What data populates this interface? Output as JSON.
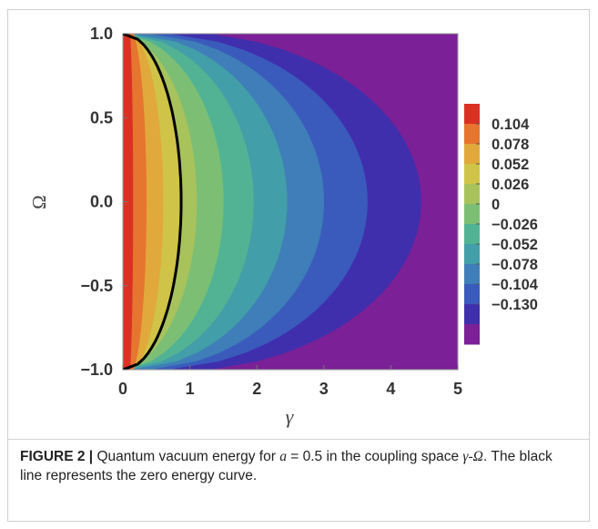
{
  "chart_data": {
    "type": "heatmap",
    "subtype": "contour",
    "title": "",
    "xlabel": "γ",
    "ylabel": "Ω",
    "xlim": [
      0,
      5
    ],
    "ylim": [
      -1.0,
      1.0
    ],
    "x_ticks": [
      "0",
      "1",
      "2",
      "3",
      "4",
      "5"
    ],
    "y_ticks": [
      "1.0",
      "0.5",
      "0.0",
      "−0.5",
      "−1.0"
    ],
    "colorbar": {
      "labels": [
        "0.104",
        "0.078",
        "0.052",
        "0.026",
        "0",
        "−0.026",
        "−0.052",
        "−0.078",
        "−0.104",
        "−0.130"
      ],
      "colors": [
        "#d93223",
        "#e6752f",
        "#e1a93b",
        "#cfc447",
        "#a8c25c",
        "#7cbf74",
        "#52b394",
        "#429ea8",
        "#3f7eb8",
        "#3a5bbc",
        "#3f2fad",
        "#7b2096"
      ]
    },
    "zero_energy_curve": {
      "description_as_printed": "The black line represents the zero energy curve.",
      "omega": [
        -1.0,
        -0.8,
        -0.6,
        -0.4,
        -0.2,
        0.0,
        0.2,
        0.4,
        0.6,
        0.8,
        1.0
      ],
      "gamma": [
        0.0,
        0.51,
        0.68,
        0.79,
        0.85,
        0.87,
        0.85,
        0.79,
        0.68,
        0.51,
        0.0
      ],
      "color": "#000000"
    }
  },
  "caption": {
    "label": "FIGURE 2 |",
    "text_before_a": " Quantum vacuum energy for ",
    "a_symbol": "a",
    "text_after_a": " = 0.5 in the coupling space ",
    "space_symbol": "γ-Ω",
    "text_end": ". The black line represents the zero energy curve."
  }
}
